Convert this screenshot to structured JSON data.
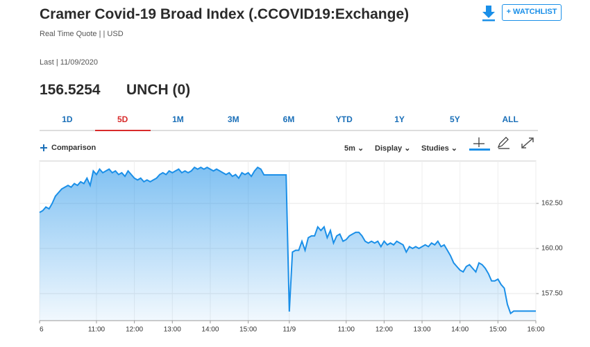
{
  "header": {
    "title": "Cramer Covid-19 Broad Index (.CCOVID19:Exchange)",
    "quote_info": "Real Time Quote | | USD",
    "last": "Last | 11/09/2020",
    "price": "156.5254",
    "change": "UNCH (0)",
    "watchlist": "+ WATCHLIST"
  },
  "tabs": {
    "items": [
      "1D",
      "5D",
      "1M",
      "3M",
      "6M",
      "YTD",
      "1Y",
      "5Y",
      "ALL"
    ],
    "active": 1
  },
  "toolbar": {
    "comparison": "Comparison",
    "interval": "5m",
    "display": "Display",
    "studies": "Studies"
  },
  "chart_data": {
    "type": "area",
    "color": "#1a8fe8",
    "values": [
      162.0,
      162.1,
      162.3,
      162.2,
      162.5,
      162.9,
      163.1,
      163.3,
      163.4,
      163.5,
      163.4,
      163.6,
      163.5,
      163.7,
      163.6,
      163.9,
      163.5,
      164.3,
      164.1,
      164.4,
      164.2,
      164.3,
      164.4,
      164.2,
      164.3,
      164.1,
      164.2,
      164.0,
      164.3,
      164.1,
      163.9,
      163.8,
      163.9,
      163.7,
      163.8,
      163.7,
      163.8,
      163.9,
      164.1,
      164.2,
      164.1,
      164.3,
      164.2,
      164.3,
      164.4,
      164.2,
      164.3,
      164.2,
      164.3,
      164.5,
      164.4,
      164.5,
      164.4,
      164.5,
      164.4,
      164.3,
      164.4,
      164.3,
      164.2,
      164.1,
      164.2,
      164.0,
      164.1,
      163.9,
      164.2,
      164.1,
      164.2,
      164.0,
      164.3,
      164.5,
      164.4,
      164.08,
      164.08,
      164.08,
      164.08,
      164.08,
      164.08,
      164.08,
      164.08,
      156.5,
      159.8,
      159.9,
      159.9,
      160.4,
      159.9,
      160.6,
      160.7,
      160.7,
      161.2,
      161.0,
      161.2,
      160.6,
      161.0,
      160.3,
      160.7,
      160.8,
      160.4,
      160.5,
      160.7,
      160.8,
      160.9,
      160.9,
      160.7,
      160.4,
      160.3,
      160.4,
      160.3,
      160.4,
      160.1,
      160.4,
      160.2,
      160.3,
      160.2,
      160.4,
      160.3,
      160.2,
      159.8,
      160.1,
      160.0,
      160.1,
      160.0,
      160.1,
      160.2,
      160.1,
      160.3,
      160.2,
      160.4,
      160.1,
      160.2,
      159.9,
      159.6,
      159.2,
      159.0,
      158.8,
      158.7,
      159.0,
      159.1,
      158.9,
      158.7,
      159.2,
      159.1,
      158.9,
      158.6,
      158.2,
      158.2,
      158.3,
      158.0,
      157.8,
      156.9,
      156.4,
      156.53,
      156.53,
      156.53,
      156.53,
      156.53,
      156.53,
      156.53,
      156.53
    ],
    "xlim": [
      0,
      157
    ],
    "xticks": [
      {
        "value": 0,
        "label": "6"
      },
      {
        "value": 18,
        "label": "11:00"
      },
      {
        "value": 30,
        "label": "12:00"
      },
      {
        "value": 42,
        "label": "13:00"
      },
      {
        "value": 54,
        "label": "14:00"
      },
      {
        "value": 66,
        "label": "15:00"
      },
      {
        "value": 79,
        "label": "11/9"
      },
      {
        "value": 97,
        "label": "11:00"
      },
      {
        "value": 109,
        "label": "12:00"
      },
      {
        "value": 121,
        "label": "13:00"
      },
      {
        "value": 133,
        "label": "14:00"
      },
      {
        "value": 145,
        "label": "15:00"
      },
      {
        "value": 157,
        "label": "16:00"
      }
    ],
    "ylim": [
      156,
      164.85
    ],
    "yticks": [
      {
        "value": 157.5,
        "label": "157.50"
      },
      {
        "value": 160,
        "label": "160.00"
      },
      {
        "value": 162.5,
        "label": "162.50"
      }
    ],
    "grid": true
  }
}
